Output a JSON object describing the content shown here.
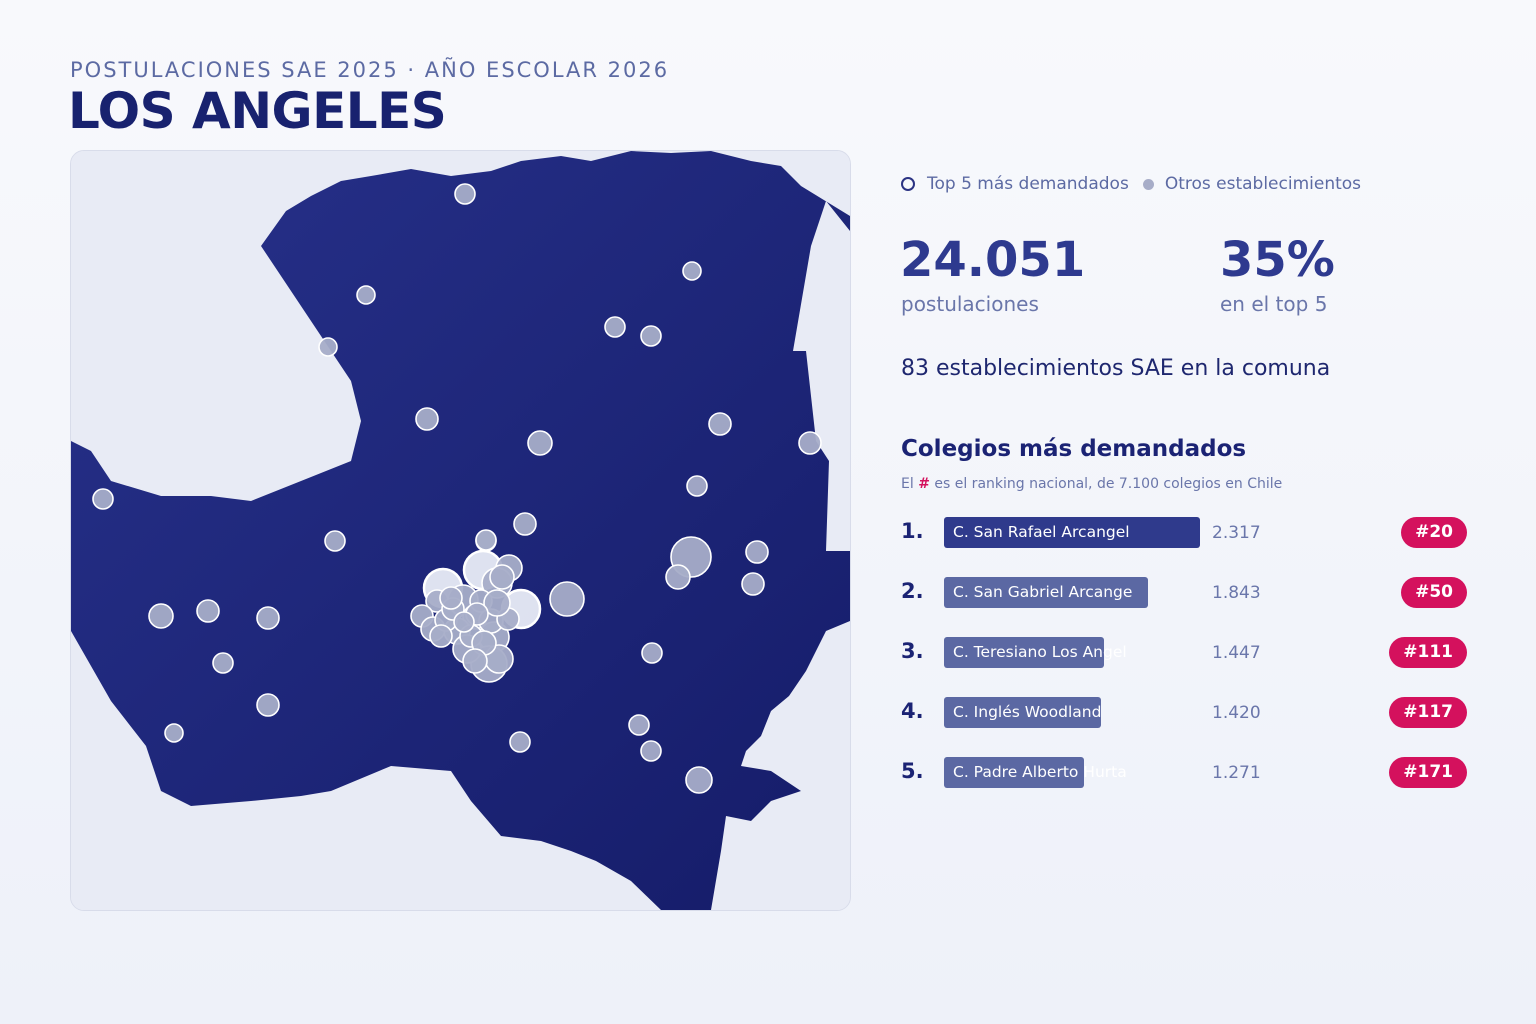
{
  "header": {
    "subtitle": "POSTULACIONES SAE 2025 · AÑO ESCOLAR 2026",
    "title": "LOS ANGELES"
  },
  "legend": {
    "top5_label": "Top 5 más demandados",
    "others_label": "Otros establecimientos"
  },
  "stats": {
    "applications_value": "24.051",
    "applications_label": "postulaciones",
    "top5_share_value": "35%",
    "top5_share_label": "en el top 5",
    "schools_line": "83 establecimientos SAE en la comuna"
  },
  "ranking": {
    "title": "Colegios más demandados",
    "note_prefix": "El ",
    "note_hash": "#",
    "note_suffix": " es el ranking nacional, de 7.100 colegios en Chile",
    "max_value": 2317,
    "items": [
      {
        "position": "1.",
        "name": "C. San Rafael Arcangel",
        "value": 2317,
        "value_label": "2.317",
        "national_rank": "#20",
        "color": "#2f3a8c"
      },
      {
        "position": "2.",
        "name": "C. San Gabriel Arcange",
        "value": 1843,
        "value_label": "1.843",
        "national_rank": "#50",
        "color": "#5b68a3"
      },
      {
        "position": "3.",
        "name": "C. Teresiano Los Angel",
        "value": 1447,
        "value_label": "1.447",
        "national_rank": "#111",
        "color": "#5b68a3"
      },
      {
        "position": "4.",
        "name": "C. Inglés Woodland",
        "value": 1420,
        "value_label": "1.420",
        "national_rank": "#117",
        "color": "#5b68a3"
      },
      {
        "position": "5.",
        "name": "C. Padre Alberto Hurta",
        "value": 1271,
        "value_label": "1.271",
        "national_rank": "#171",
        "color": "#5b68a3"
      }
    ]
  },
  "map": {
    "region_color": "#1d2478",
    "background_color": "#e8ebf5",
    "marker_color": "#a7adc8"
  }
}
